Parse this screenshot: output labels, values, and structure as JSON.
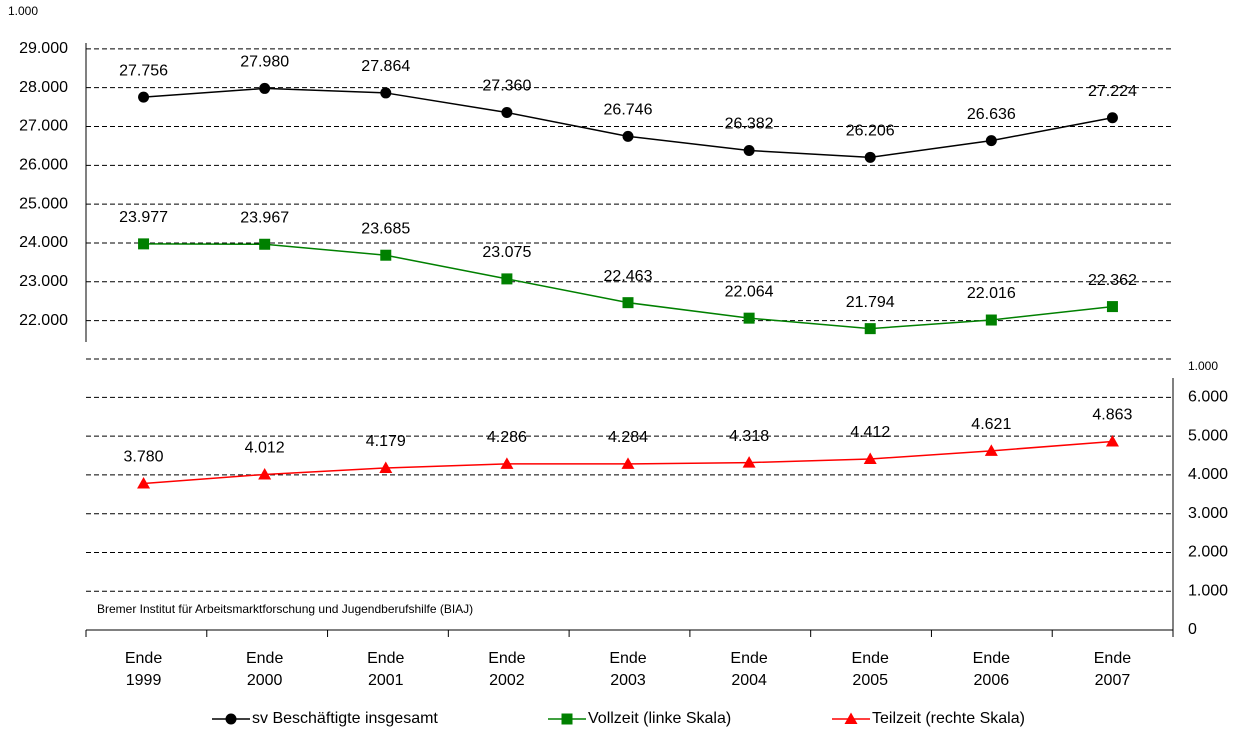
{
  "chart_data": {
    "type": "line",
    "y_unit": "1.000",
    "y2_unit": "1.000",
    "categories": [
      "Ende\n1999",
      "Ende\n2000",
      "Ende\n2001",
      "Ende\n2002",
      "Ende\n2003",
      "Ende\n2004",
      "Ende\n2005",
      "Ende\n2006",
      "Ende\n2007"
    ],
    "series": [
      {
        "name": "sv Beschäftigte insgesamt",
        "color": "#000000",
        "marker": "circle",
        "values": [
          27756,
          27980,
          27864,
          27360,
          26746,
          26382,
          26206,
          26636,
          27224
        ],
        "value_labels": [
          "27.756",
          "27.980",
          "27.864",
          "27.360",
          "26.746",
          "26.382",
          "26.206",
          "26.636",
          "27.224"
        ]
      },
      {
        "name": "Vollzeit (linke Skala)",
        "color": "#008000",
        "marker": "square",
        "values": [
          23977,
          23967,
          23685,
          23075,
          22463,
          22064,
          21794,
          22016,
          22362
        ],
        "value_labels": [
          "23.977",
          "23.967",
          "23.685",
          "23.075",
          "22.463",
          "22.064",
          "21.794",
          "22.016",
          "22.362"
        ]
      },
      {
        "name": "Teilzeit (rechte Skala)",
        "color": "#ff0000",
        "marker": "triangle",
        "axis": "y2",
        "values": [
          3780,
          4012,
          4179,
          4286,
          4284,
          4318,
          4412,
          4621,
          4863
        ],
        "value_labels": [
          "3.780",
          "4.012",
          "4.179",
          "4.286",
          "4.284",
          "4.318",
          "4.412",
          "4.621",
          "4.863"
        ]
      }
    ],
    "ylim": [
      21450,
      29150
    ],
    "yticks": [
      {
        "value": 22000,
        "label": "22.000"
      },
      {
        "value": 23000,
        "label": "23.000"
      },
      {
        "value": 24000,
        "label": "24.000"
      },
      {
        "value": 25000,
        "label": "25.000"
      },
      {
        "value": 26000,
        "label": "26.000"
      },
      {
        "value": 27000,
        "label": "27.000"
      },
      {
        "value": 28000,
        "label": "28.000"
      },
      {
        "value": 29000,
        "label": "29.000"
      }
    ],
    "y2lim": [
      0,
      6500
    ],
    "y2ticks": [
      0,
      {
        "value": 1000,
        "label": "1.000"
      },
      {
        "value": 2000,
        "label": "2.000"
      },
      {
        "value": 3000,
        "label": "3.000"
      },
      {
        "value": 4000,
        "label": "4.000"
      },
      {
        "value": 5000,
        "label": "5.000"
      },
      {
        "value": 6000,
        "label": "6.000"
      }
    ],
    "grid": true,
    "source": "Bremer Institut für Arbeitsmarktforschung und Jugendberufshilfe (BIAJ)"
  }
}
